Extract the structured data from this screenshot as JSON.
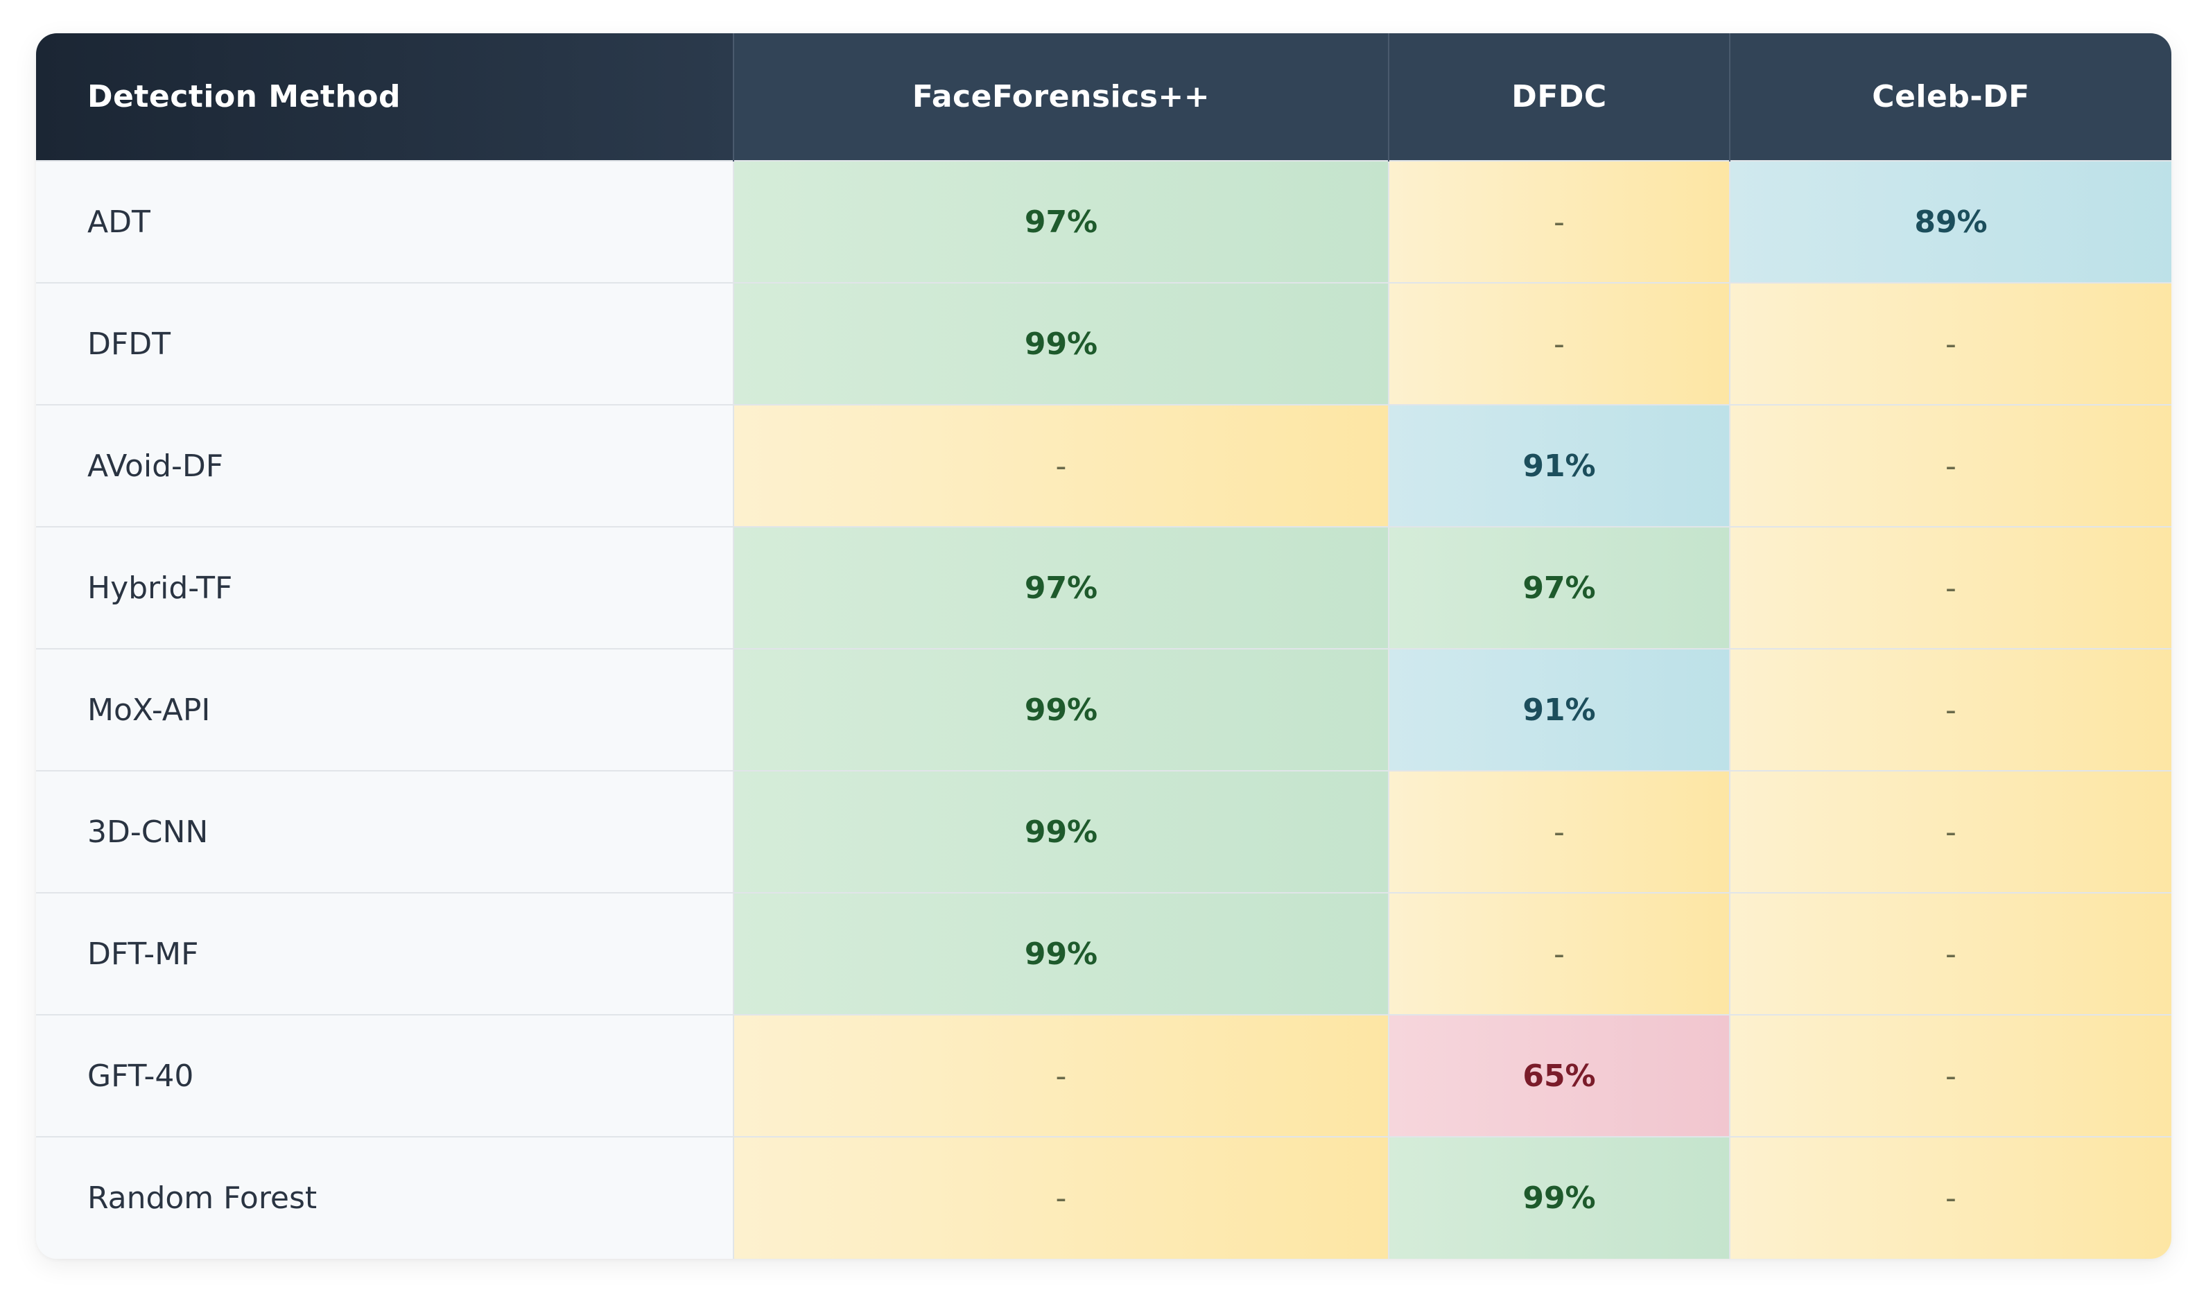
{
  "table": {
    "headers": [
      "Detection Method",
      "FaceForensics++",
      "DFDC",
      "Celeb-DF"
    ],
    "rows": [
      {
        "method": "ADT",
        "cells": [
          {
            "v": "97%",
            "k": "good"
          },
          {
            "v": "-",
            "k": "none"
          },
          {
            "v": "89%",
            "k": "mid"
          }
        ]
      },
      {
        "method": "DFDT",
        "cells": [
          {
            "v": "99%",
            "k": "good"
          },
          {
            "v": "-",
            "k": "none"
          },
          {
            "v": "-",
            "k": "none"
          }
        ]
      },
      {
        "method": "AVoid-DF",
        "cells": [
          {
            "v": "-",
            "k": "none"
          },
          {
            "v": "91%",
            "k": "mid"
          },
          {
            "v": "-",
            "k": "none"
          }
        ]
      },
      {
        "method": "Hybrid-TF",
        "cells": [
          {
            "v": "97%",
            "k": "good"
          },
          {
            "v": "97%",
            "k": "good"
          },
          {
            "v": "-",
            "k": "none"
          }
        ]
      },
      {
        "method": "MoX-API",
        "cells": [
          {
            "v": "99%",
            "k": "good"
          },
          {
            "v": "91%",
            "k": "mid"
          },
          {
            "v": "-",
            "k": "none"
          }
        ]
      },
      {
        "method": "3D-CNN",
        "cells": [
          {
            "v": "99%",
            "k": "good"
          },
          {
            "v": "-",
            "k": "none"
          },
          {
            "v": "-",
            "k": "none"
          }
        ]
      },
      {
        "method": "DFT-MF",
        "cells": [
          {
            "v": "99%",
            "k": "good"
          },
          {
            "v": "-",
            "k": "none"
          },
          {
            "v": "-",
            "k": "none"
          }
        ]
      },
      {
        "method": "GFT-40",
        "cells": [
          {
            "v": "-",
            "k": "none"
          },
          {
            "v": "65%",
            "k": "poor"
          },
          {
            "v": "-",
            "k": "none"
          }
        ]
      },
      {
        "method": "Random Forest",
        "cells": [
          {
            "v": "-",
            "k": "none"
          },
          {
            "v": "99%",
            "k": "good"
          },
          {
            "v": "-",
            "k": "none"
          }
        ]
      }
    ]
  },
  "colors": {
    "header_bg": "#324457",
    "header_dark": "#1b2634",
    "high_accuracy_bg": "#c5e4cd",
    "mid_accuracy_bg": "#bde1e8",
    "low_accuracy_bg": "#f1c6cf",
    "no_data_bg": "#fde6a4"
  }
}
